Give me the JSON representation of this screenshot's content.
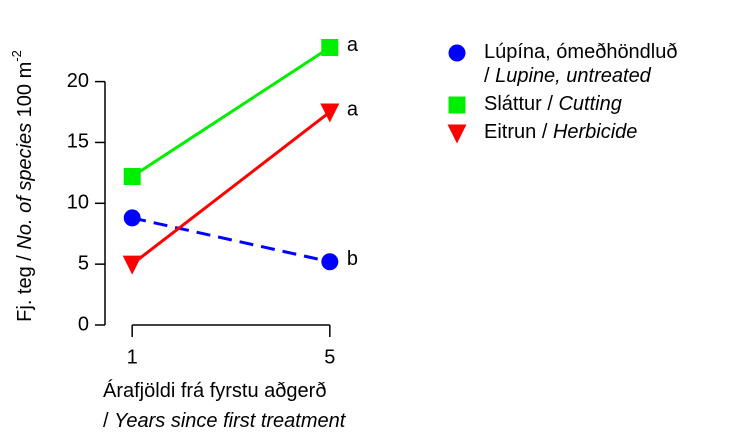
{
  "chart_data": {
    "type": "line",
    "ylabel": [
      "Fj. teg / ",
      "No. of species",
      " 100 m",
      "-2"
    ],
    "xlabel": [
      "Árafjöldi frá fyrstu aðgerð",
      "/ ",
      "Years since first treatment"
    ],
    "x": [
      1,
      5
    ],
    "xlim": [
      0.45,
      5.55
    ],
    "xticks": [
      1,
      5
    ],
    "ylim": [
      0,
      23.5
    ],
    "yticks": [
      0,
      5,
      10,
      15,
      20
    ],
    "grid": false,
    "legend": "right",
    "series": [
      {
        "name": "Lúpína, ómeðhöndluð / Lupine, untreated",
        "color": "#0000ff",
        "marker": "circle",
        "linestyle": "dashed",
        "values": [
          8.8,
          5.2
        ],
        "label": "b"
      },
      {
        "name": "Sláttur / Cutting",
        "color": "#00ee00",
        "marker": "square",
        "linestyle": "solid",
        "values": [
          12.2,
          22.8
        ],
        "label": "a"
      },
      {
        "name": "Eitrun / Herbicide",
        "color": "#ff0000",
        "marker": "triangle-down",
        "linestyle": "solid",
        "values": [
          5,
          17.5
        ],
        "label": "a"
      }
    ]
  }
}
